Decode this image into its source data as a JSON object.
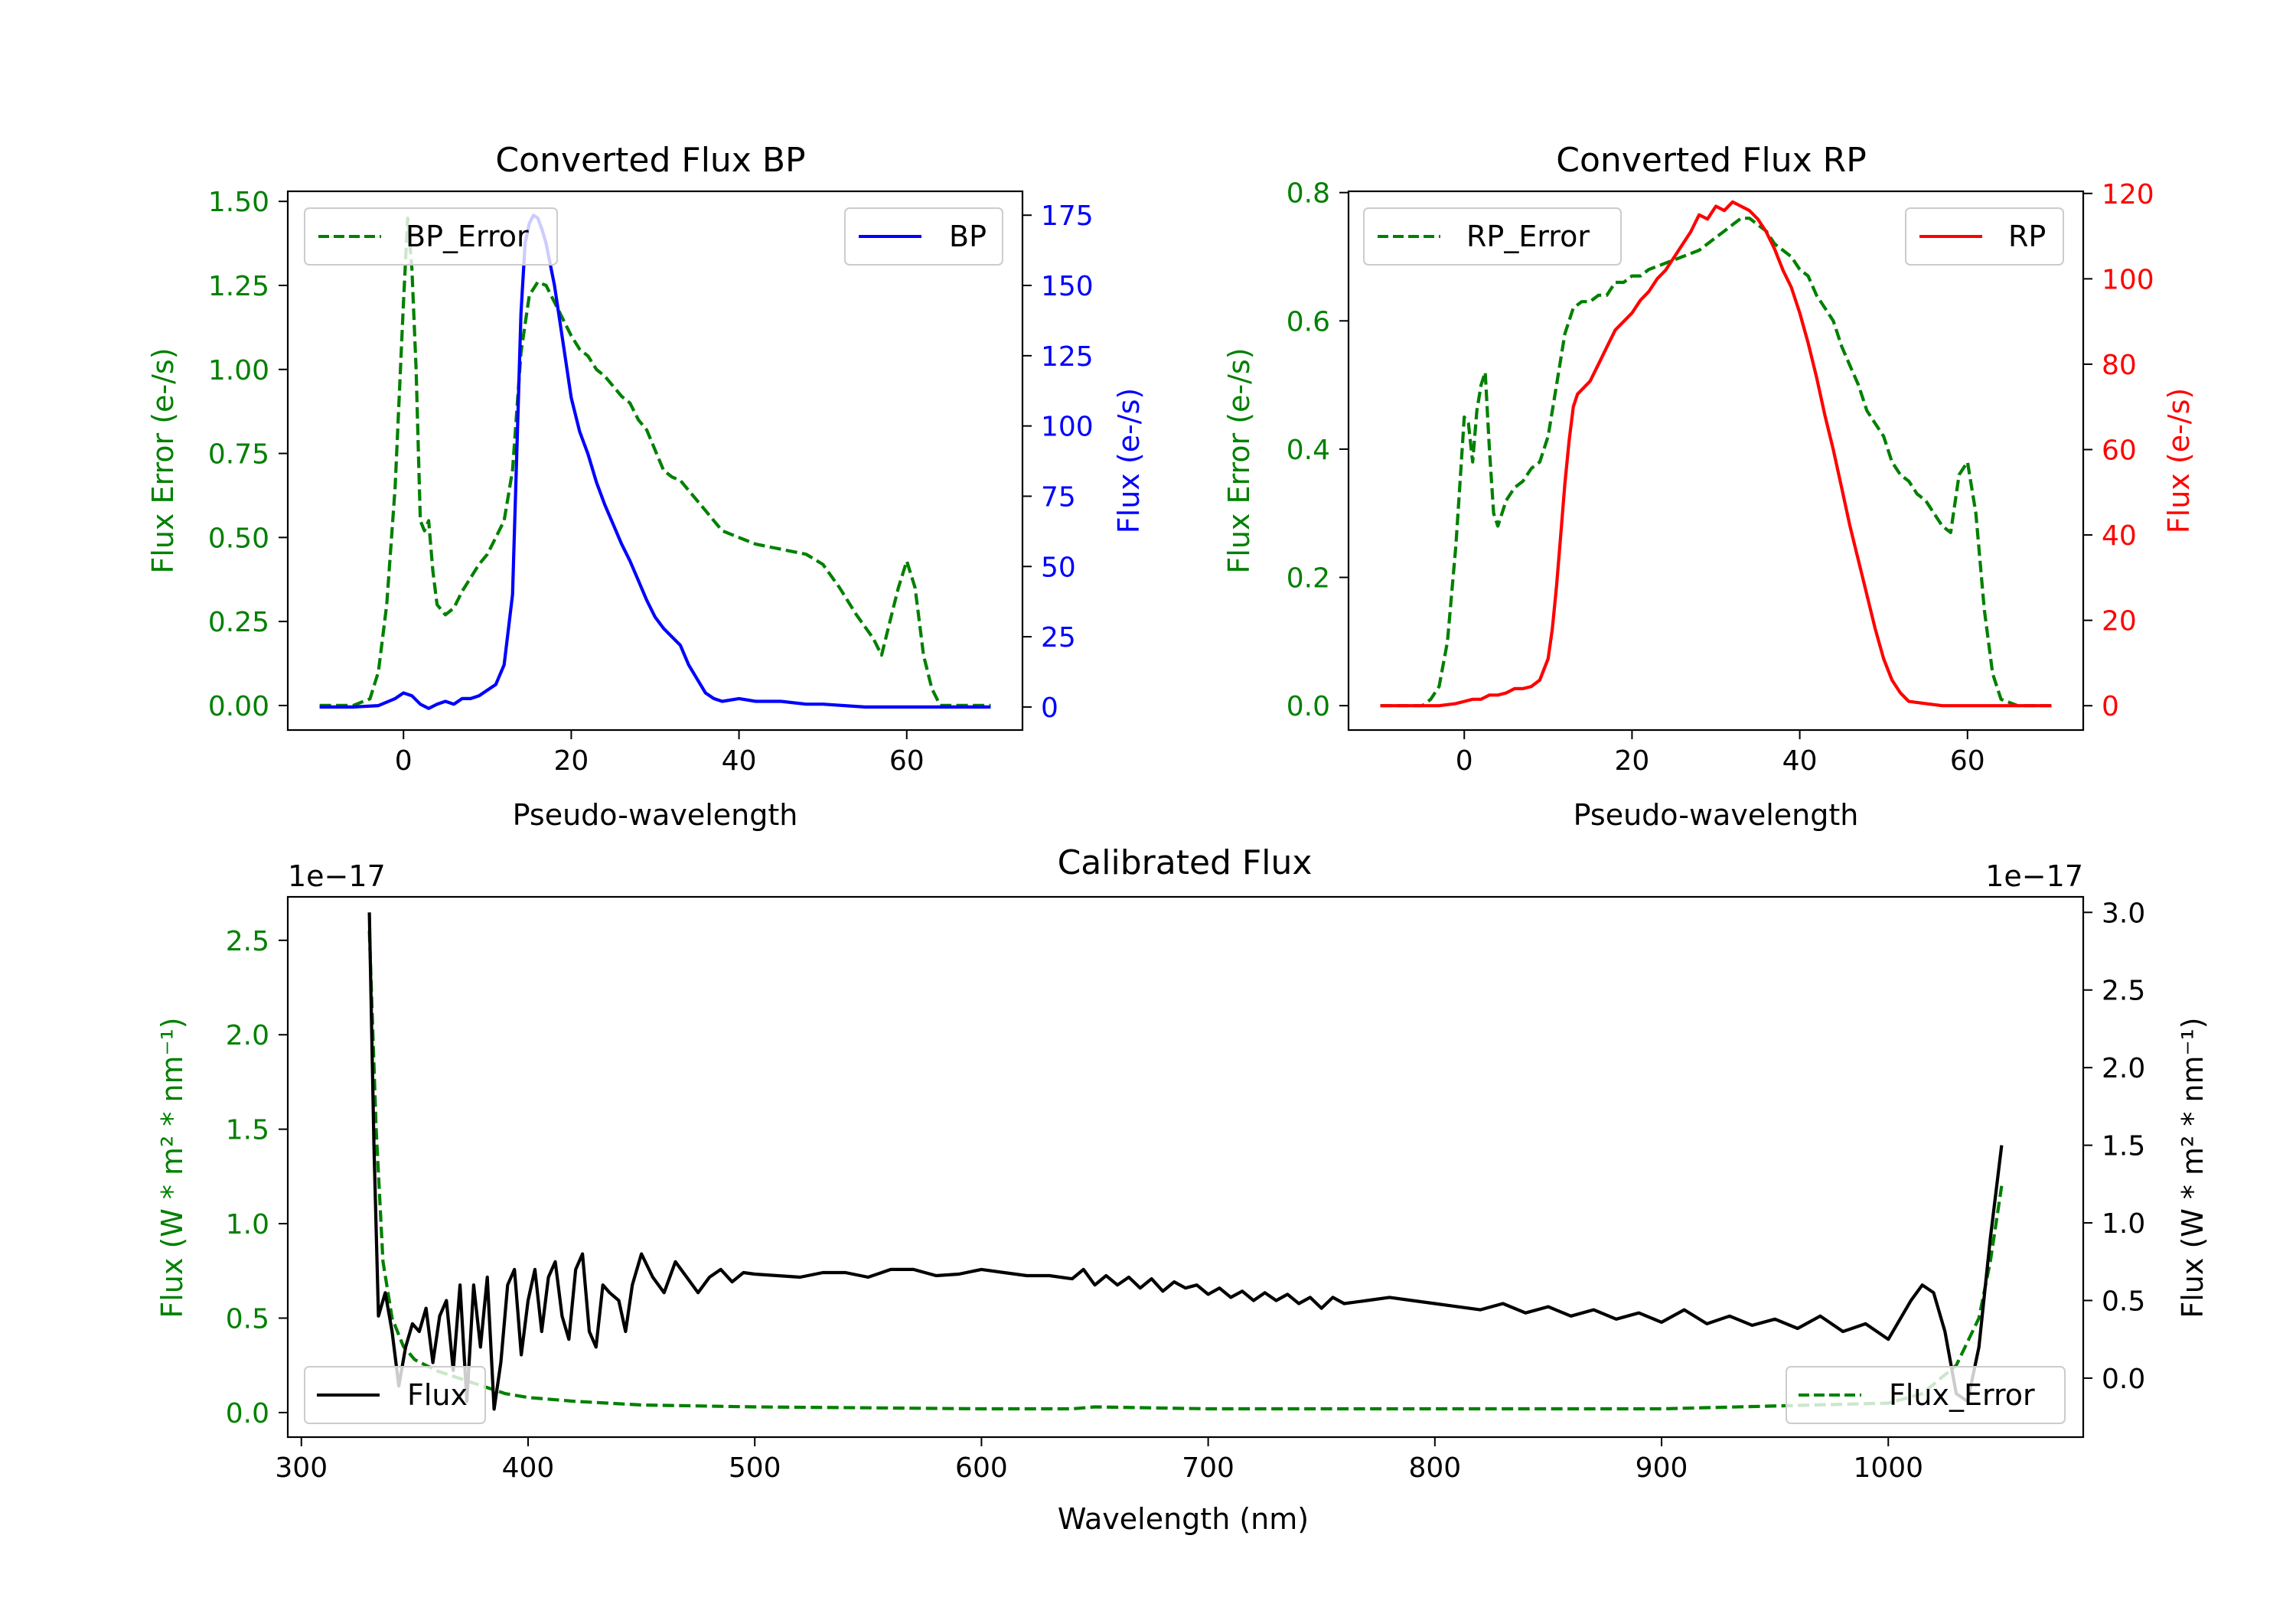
{
  "colors": {
    "bp": "#0000ff",
    "rp": "#ff0000",
    "error": "#008000",
    "flux": "#000000"
  },
  "chart_data": [
    {
      "type": "line",
      "title": "Converted Flux BP",
      "xlabel": "Pseudo-wavelength",
      "ylabel_left": "Flux Error (e-/s)",
      "ylabel_right": "Flux (e-/s)",
      "xlim": [
        -13.8,
        73.8
      ],
      "ylim_left": [
        -0.073,
        1.53
      ],
      "ylim_right": [
        -8.2,
        183.5
      ],
      "xticks": [
        0,
        20,
        40,
        60
      ],
      "yticks_left": [
        "0.00",
        "0.25",
        "0.50",
        "0.75",
        "1.00",
        "1.25",
        "1.50"
      ],
      "yticks_right": [
        "0",
        "25",
        "50",
        "75",
        "100",
        "125",
        "150",
        "175"
      ],
      "series": [
        {
          "name": "BP_Error",
          "axis": "left",
          "style": "dashed",
          "color": "#008000",
          "x": [
            -10,
            -6,
            -4,
            -3,
            -2,
            -1,
            0,
            0.5,
            1,
            1.5,
            2,
            2.5,
            3,
            3.5,
            4,
            5,
            6,
            7,
            8,
            9,
            10,
            11,
            12,
            13,
            14,
            15,
            16,
            17,
            18,
            19,
            20,
            21,
            22,
            23,
            24,
            25,
            26,
            27,
            28,
            29,
            30,
            31,
            32,
            33,
            34,
            35,
            36,
            37,
            38,
            40,
            42,
            44,
            46,
            48,
            50,
            52,
            54,
            56,
            57,
            58,
            59,
            60,
            61,
            62,
            63,
            64,
            66,
            68,
            70
          ],
          "y": [
            0,
            0,
            0.02,
            0.1,
            0.3,
            0.65,
            1.2,
            1.45,
            1.3,
            1.0,
            0.55,
            0.52,
            0.55,
            0.4,
            0.3,
            0.27,
            0.29,
            0.34,
            0.38,
            0.42,
            0.45,
            0.5,
            0.55,
            0.7,
            1.05,
            1.22,
            1.26,
            1.25,
            1.2,
            1.15,
            1.1,
            1.06,
            1.04,
            1.0,
            0.98,
            0.95,
            0.92,
            0.9,
            0.85,
            0.82,
            0.76,
            0.7,
            0.68,
            0.67,
            0.64,
            0.61,
            0.58,
            0.55,
            0.52,
            0.5,
            0.48,
            0.47,
            0.46,
            0.45,
            0.42,
            0.35,
            0.27,
            0.2,
            0.15,
            0.25,
            0.35,
            0.43,
            0.35,
            0.15,
            0.05,
            0,
            0,
            0,
            0
          ]
        },
        {
          "name": "BP",
          "axis": "right",
          "style": "solid",
          "color": "#0000ff",
          "x": [
            -10,
            -6,
            -3,
            -1,
            0,
            1,
            2,
            3,
            4,
            5,
            6,
            7,
            8,
            9,
            10,
            11,
            12,
            13,
            13.5,
            14,
            14.5,
            15,
            15.5,
            16,
            16.5,
            17,
            18,
            19,
            20,
            21,
            22,
            23,
            24,
            25,
            26,
            27,
            28,
            29,
            30,
            31,
            32,
            33,
            34,
            35,
            36,
            37,
            38,
            40,
            42,
            45,
            48,
            50,
            55,
            60,
            65,
            70
          ],
          "y": [
            0,
            0,
            0.5,
            3,
            5,
            4,
            1,
            -0.5,
            1,
            2,
            1,
            3,
            3,
            4,
            6,
            8,
            15,
            40,
            90,
            140,
            165,
            172,
            175,
            174,
            170,
            165,
            150,
            130,
            110,
            98,
            90,
            80,
            72,
            65,
            58,
            52,
            45,
            38,
            32,
            28,
            25,
            22,
            15,
            10,
            5,
            3,
            2,
            3,
            2,
            2,
            1,
            1,
            0,
            0,
            0,
            0
          ]
        }
      ],
      "legend": [
        {
          "label": "BP_Error",
          "location": "upper-left"
        },
        {
          "label": "BP",
          "location": "upper-right"
        }
      ]
    },
    {
      "type": "line",
      "title": "Converted Flux RP",
      "xlabel": "Pseudo-wavelength",
      "ylabel_left": "Flux Error (e-/s)",
      "ylabel_right": "Flux (e-/s)",
      "xlim": [
        -13.8,
        73.8
      ],
      "ylim_left": [
        -0.038,
        0.802
      ],
      "ylim_right": [
        -5.7,
        120.5
      ],
      "xticks": [
        0,
        20,
        40,
        60
      ],
      "yticks_left": [
        "0.0",
        "0.2",
        "0.4",
        "0.6",
        "0.8"
      ],
      "yticks_right": [
        "0",
        "20",
        "40",
        "60",
        "80",
        "100",
        "120"
      ],
      "series": [
        {
          "name": "RP_Error",
          "axis": "left",
          "style": "dashed",
          "color": "#008000",
          "x": [
            -10,
            -5,
            -4,
            -3,
            -2,
            -1,
            -0.5,
            0,
            0.5,
            1,
            1.5,
            2,
            2.5,
            3,
            3.5,
            4,
            5,
            6,
            7,
            8,
            9,
            10,
            11,
            12,
            13,
            14,
            15,
            16,
            17,
            18,
            19,
            20,
            21,
            22,
            24,
            26,
            28,
            30,
            31,
            32,
            33,
            34,
            35,
            36,
            37,
            38,
            39,
            40,
            41,
            42,
            43,
            44,
            45,
            46,
            47,
            48,
            49,
            50,
            51,
            52,
            53,
            54,
            55,
            56,
            57,
            58,
            59,
            60,
            61,
            62,
            63,
            64,
            66,
            70
          ],
          "y": [
            0,
            0,
            0.01,
            0.03,
            0.1,
            0.25,
            0.35,
            0.45,
            0.44,
            0.38,
            0.46,
            0.5,
            0.52,
            0.4,
            0.3,
            0.28,
            0.32,
            0.34,
            0.35,
            0.37,
            0.38,
            0.42,
            0.5,
            0.58,
            0.62,
            0.63,
            0.63,
            0.64,
            0.64,
            0.66,
            0.66,
            0.67,
            0.67,
            0.68,
            0.69,
            0.7,
            0.71,
            0.73,
            0.74,
            0.75,
            0.76,
            0.76,
            0.75,
            0.74,
            0.72,
            0.71,
            0.7,
            0.68,
            0.67,
            0.64,
            0.62,
            0.6,
            0.56,
            0.53,
            0.5,
            0.46,
            0.44,
            0.42,
            0.38,
            0.36,
            0.35,
            0.33,
            0.32,
            0.3,
            0.28,
            0.27,
            0.36,
            0.38,
            0.3,
            0.15,
            0.05,
            0.01,
            0,
            0
          ]
        },
        {
          "name": "RP",
          "axis": "right",
          "style": "solid",
          "color": "#ff0000",
          "x": [
            -10,
            -3,
            -1,
            0,
            1,
            2,
            3,
            4,
            5,
            6,
            7,
            8,
            9,
            10,
            10.5,
            11,
            11.5,
            12,
            12.5,
            13,
            13.5,
            14,
            15,
            16,
            17,
            18,
            19,
            20,
            21,
            22,
            23,
            24,
            25,
            26,
            27,
            28,
            29,
            30,
            31,
            32,
            33,
            34,
            35,
            36,
            37,
            38,
            39,
            40,
            41,
            42,
            43,
            44,
            45,
            46,
            47,
            48,
            49,
            50,
            51,
            52,
            53,
            55,
            57,
            60,
            65,
            70
          ],
          "y": [
            0,
            0,
            0.5,
            1,
            1.5,
            1.5,
            2.5,
            2.5,
            3,
            4,
            4,
            4.5,
            6,
            11,
            18,
            28,
            40,
            52,
            62,
            70,
            73,
            74,
            76,
            80,
            84,
            88,
            90,
            92,
            95,
            97,
            100,
            102,
            105,
            108,
            111,
            115,
            114,
            117,
            116,
            118,
            117,
            116,
            114,
            111,
            107,
            102,
            98,
            92,
            85,
            77,
            68,
            60,
            51,
            42,
            34,
            26,
            18,
            11,
            6,
            3,
            1,
            0.5,
            0,
            0,
            0,
            0
          ]
        }
      ],
      "legend": [
        {
          "label": "RP_Error",
          "location": "upper-left"
        },
        {
          "label": "RP",
          "location": "upper-right"
        }
      ]
    },
    {
      "type": "line",
      "title": "Calibrated Flux",
      "xlabel": "Wavelength (nm)",
      "ylabel_left": "Flux (W * m² * nm⁻¹)",
      "ylabel_right": "Flux (W * m² * nm⁻¹)",
      "offset_left": "1e−17",
      "offset_right": "1e−17",
      "xlim": [
        294,
        1086
      ],
      "ylim_left": [
        -0.13,
        2.73
      ],
      "ylim_right": [
        -0.38,
        3.1
      ],
      "xticks": [
        300,
        400,
        500,
        600,
        700,
        800,
        900,
        1000
      ],
      "yticks_left": [
        "0.0",
        "0.5",
        "1.0",
        "1.5",
        "2.0",
        "2.5"
      ],
      "yticks_right": [
        "0.0",
        "0.5",
        "1.0",
        "1.5",
        "2.0",
        "2.5",
        "3.0"
      ],
      "series": [
        {
          "name": "Flux_Error",
          "axis": "left",
          "style": "dashed",
          "color": "#008000",
          "x": [
            330,
            333,
            336,
            340,
            345,
            350,
            355,
            360,
            365,
            370,
            380,
            390,
            400,
            420,
            450,
            500,
            550,
            600,
            640,
            650,
            700,
            800,
            900,
            1000,
            1015,
            1030,
            1040,
            1045,
            1050
          ],
          "y": [
            2.55,
            1.5,
            0.8,
            0.5,
            0.35,
            0.28,
            0.25,
            0.22,
            0.2,
            0.18,
            0.14,
            0.1,
            0.08,
            0.06,
            0.04,
            0.03,
            0.025,
            0.02,
            0.02,
            0.03,
            0.02,
            0.02,
            0.02,
            0.05,
            0.1,
            0.25,
            0.5,
            0.8,
            1.2
          ]
        },
        {
          "name": "Flux",
          "axis": "right",
          "style": "solid",
          "color": "#000000",
          "x": [
            330,
            332,
            334,
            337,
            340,
            343,
            346,
            349,
            352,
            355,
            358,
            361,
            364,
            367,
            370,
            373,
            376,
            379,
            382,
            385,
            388,
            391,
            394,
            397,
            400,
            403,
            406,
            409,
            412,
            415,
            418,
            421,
            424,
            427,
            430,
            433,
            436,
            440,
            443,
            446,
            450,
            455,
            460,
            465,
            470,
            475,
            480,
            485,
            490,
            495,
            500,
            510,
            520,
            530,
            540,
            550,
            560,
            570,
            580,
            590,
            600,
            610,
            620,
            630,
            640,
            645,
            650,
            655,
            660,
            665,
            670,
            675,
            680,
            685,
            690,
            695,
            700,
            705,
            710,
            715,
            720,
            725,
            730,
            735,
            740,
            745,
            750,
            755,
            760,
            770,
            780,
            790,
            800,
            810,
            820,
            830,
            840,
            850,
            860,
            870,
            880,
            890,
            900,
            910,
            920,
            930,
            940,
            950,
            960,
            970,
            980,
            990,
            1000,
            1010,
            1015,
            1020,
            1025,
            1030,
            1035,
            1040,
            1045,
            1050
          ],
          "y": [
            3.0,
            1.5,
            0.4,
            0.55,
            0.3,
            -0.05,
            0.2,
            0.35,
            0.3,
            0.45,
            0.1,
            0.4,
            0.5,
            0.05,
            0.6,
            -0.15,
            0.6,
            0.2,
            0.65,
            -0.2,
            0.1,
            0.6,
            0.7,
            0.15,
            0.5,
            0.7,
            0.3,
            0.65,
            0.75,
            0.4,
            0.25,
            0.7,
            0.8,
            0.3,
            0.2,
            0.6,
            0.55,
            0.5,
            0.3,
            0.6,
            0.8,
            0.65,
            0.55,
            0.75,
            0.65,
            0.55,
            0.65,
            0.7,
            0.62,
            0.68,
            0.67,
            0.66,
            0.65,
            0.68,
            0.68,
            0.65,
            0.7,
            0.7,
            0.66,
            0.67,
            0.7,
            0.68,
            0.66,
            0.66,
            0.64,
            0.7,
            0.6,
            0.66,
            0.6,
            0.65,
            0.58,
            0.64,
            0.56,
            0.62,
            0.58,
            0.6,
            0.54,
            0.58,
            0.52,
            0.56,
            0.5,
            0.55,
            0.5,
            0.54,
            0.48,
            0.52,
            0.45,
            0.52,
            0.48,
            0.5,
            0.52,
            0.5,
            0.48,
            0.46,
            0.44,
            0.48,
            0.42,
            0.46,
            0.4,
            0.44,
            0.38,
            0.42,
            0.36,
            0.44,
            0.35,
            0.4,
            0.34,
            0.38,
            0.32,
            0.4,
            0.3,
            0.35,
            0.25,
            0.5,
            0.6,
            0.55,
            0.3,
            -0.1,
            -0.15,
            0.2,
            0.9,
            1.5
          ]
        }
      ],
      "legend": [
        {
          "label": "Flux",
          "location": "lower-left"
        },
        {
          "label": "Flux_Error",
          "location": "lower-right"
        }
      ]
    }
  ]
}
